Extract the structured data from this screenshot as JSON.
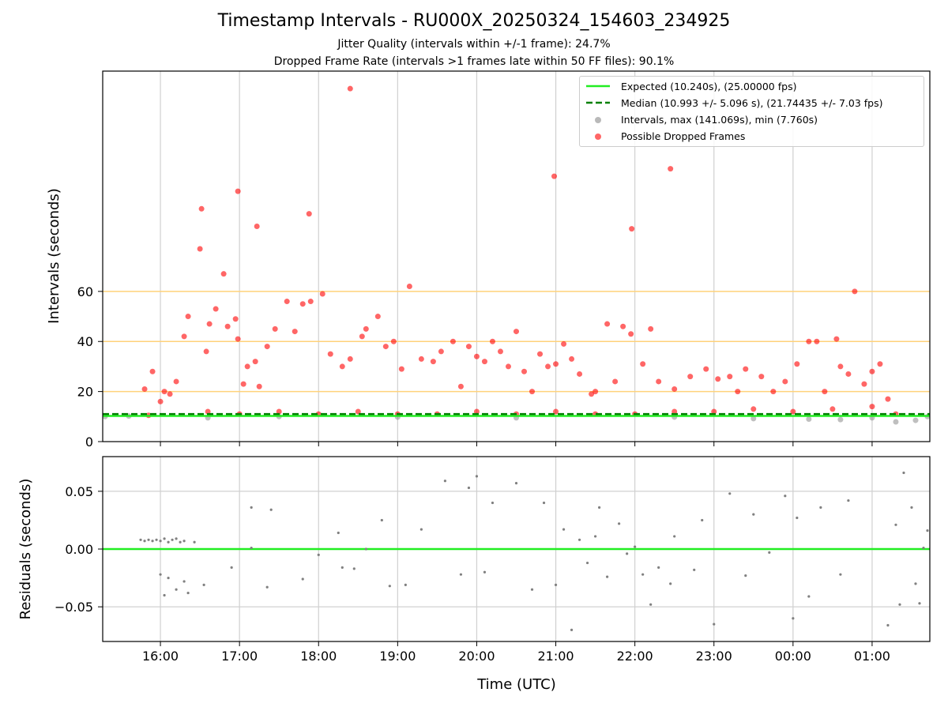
{
  "title": "Timestamp Intervals - RU000X_20250324_154603_234925",
  "subtitle_1": "Jitter Quality (intervals within +/-1 frame): 24.7%",
  "subtitle_2": "Dropped Frame Rate (intervals >1 frames late within 50 FF files): 90.1%",
  "legend": {
    "expected": "Expected (10.240s), (25.00000 fps)",
    "median": "Median (10.993 +/- 5.096 s), (21.74435 +/- 7.03 fps)",
    "intervals": "Intervals, max (141.069s), min (7.760s)",
    "dropped": "Possible Dropped Frames"
  },
  "colors": {
    "expected": "#22ee22",
    "median": "#008000",
    "intervals": "#808080",
    "dropped": "#ff0000",
    "threshold": "#ffd27a",
    "grid": "#d0d0d0"
  },
  "chart_data": [
    {
      "type": "scatter",
      "title": "Timestamp Intervals - RU000X_20250324_154603_234925",
      "xlabel": "",
      "ylabel": "Intervals (seconds)",
      "x_unit": "hours since 16:00 UTC",
      "xlim": [
        -0.73,
        9.73
      ],
      "ylim": [
        0,
        148
      ],
      "x_ticks": [
        "16:00",
        "17:00",
        "18:00",
        "19:00",
        "20:00",
        "21:00",
        "22:00",
        "23:00",
        "00:00",
        "01:00"
      ],
      "y_ticks": [
        0,
        20,
        40,
        60
      ],
      "threshold_lines": [
        20,
        40,
        60
      ],
      "expected_line": 10.24,
      "median_line": 10.993,
      "legend_position": "top-right",
      "grid": true,
      "series": [
        {
          "name": "Possible Dropped Frames",
          "points": [
            [
              -0.2,
              21
            ],
            [
              -0.1,
              28
            ],
            [
              0.0,
              16
            ],
            [
              0.05,
              20
            ],
            [
              0.12,
              19
            ],
            [
              0.2,
              24
            ],
            [
              0.3,
              42
            ],
            [
              0.35,
              50
            ],
            [
              0.5,
              77
            ],
            [
              0.58,
              36
            ],
            [
              0.62,
              47
            ],
            [
              0.7,
              53
            ],
            [
              0.8,
              67
            ],
            [
              0.85,
              46
            ],
            [
              0.95,
              49
            ],
            [
              0.98,
              41
            ],
            [
              1.05,
              23
            ],
            [
              1.1,
              30
            ],
            [
              1.2,
              32
            ],
            [
              1.25,
              22
            ],
            [
              1.35,
              38
            ],
            [
              1.45,
              45
            ],
            [
              1.6,
              56
            ],
            [
              1.7,
              44
            ],
            [
              1.8,
              55
            ],
            [
              1.9,
              56
            ],
            [
              2.05,
              59
            ],
            [
              2.15,
              35
            ],
            [
              2.3,
              30
            ],
            [
              2.4,
              33
            ],
            [
              2.55,
              42
            ],
            [
              2.6,
              45
            ],
            [
              2.75,
              50
            ],
            [
              2.85,
              38
            ],
            [
              2.95,
              40
            ],
            [
              3.05,
              29
            ],
            [
              3.15,
              62
            ],
            [
              3.3,
              33
            ],
            [
              3.45,
              32
            ],
            [
              3.55,
              36
            ],
            [
              3.7,
              40
            ],
            [
              3.8,
              22
            ],
            [
              3.9,
              38
            ],
            [
              4.0,
              34
            ],
            [
              4.1,
              32
            ],
            [
              4.2,
              40
            ],
            [
              4.3,
              36
            ],
            [
              4.4,
              30
            ],
            [
              4.5,
              44
            ],
            [
              4.6,
              28
            ],
            [
              4.7,
              20
            ],
            [
              4.8,
              35
            ],
            [
              4.9,
              30
            ],
            [
              5.0,
              31
            ],
            [
              5.1,
              39
            ],
            [
              5.2,
              33
            ],
            [
              5.3,
              27
            ],
            [
              5.45,
              19
            ],
            [
              5.5,
              20
            ],
            [
              5.65,
              47
            ],
            [
              5.75,
              24
            ],
            [
              5.85,
              46
            ],
            [
              5.95,
              43
            ],
            [
              6.1,
              31
            ],
            [
              6.2,
              45
            ],
            [
              6.3,
              24
            ],
            [
              6.5,
              21
            ],
            [
              6.7,
              26
            ],
            [
              6.9,
              29
            ],
            [
              7.05,
              25
            ],
            [
              7.2,
              26
            ],
            [
              7.3,
              20
            ],
            [
              7.4,
              29
            ],
            [
              7.6,
              26
            ],
            [
              7.75,
              20
            ],
            [
              7.9,
              24
            ],
            [
              8.05,
              31
            ],
            [
              8.2,
              40
            ],
            [
              8.3,
              40
            ],
            [
              8.4,
              20
            ],
            [
              8.55,
              41
            ],
            [
              8.6,
              30
            ],
            [
              8.7,
              27
            ],
            [
              8.9,
              23
            ],
            [
              9.0,
              28
            ],
            [
              9.1,
              31
            ],
            [
              9.2,
              17
            ],
            [
              9.3,
              11
            ],
            [
              -0.15,
              10.5
            ],
            [
              0.6,
              12
            ],
            [
              1.0,
              11
            ],
            [
              1.5,
              12
            ],
            [
              2.0,
              11
            ],
            [
              2.5,
              12
            ],
            [
              3.0,
              11
            ],
            [
              3.5,
              11
            ],
            [
              4.0,
              12
            ],
            [
              4.5,
              11
            ],
            [
              5.0,
              12
            ],
            [
              5.5,
              11
            ],
            [
              6.0,
              11
            ],
            [
              6.5,
              12
            ],
            [
              7.0,
              12
            ],
            [
              7.5,
              13
            ],
            [
              8.0,
              12
            ],
            [
              8.5,
              13
            ],
            [
              9.0,
              14
            ],
            [
              2.4,
              141
            ],
            [
              4.98,
              106
            ],
            [
              6.45,
              109
            ],
            [
              0.52,
              93
            ],
            [
              0.98,
              100
            ],
            [
              1.22,
              86
            ],
            [
              1.88,
              91
            ],
            [
              5.96,
              85
            ],
            [
              8.78,
              60
            ]
          ]
        },
        {
          "name": "Intervals, max (141.069s), min (7.760s)",
          "points": [
            [
              -0.7,
              10
            ],
            [
              -0.4,
              10.2
            ],
            [
              0.6,
              9.5
            ],
            [
              1.5,
              10
            ],
            [
              3.0,
              9.8
            ],
            [
              4.5,
              9.5
            ],
            [
              6.5,
              9.8
            ],
            [
              7.5,
              9.2
            ],
            [
              8.2,
              9.0
            ],
            [
              8.6,
              8.8
            ],
            [
              9.0,
              9.5
            ],
            [
              9.3,
              7.9
            ],
            [
              9.55,
              8.5
            ],
            [
              9.7,
              10
            ]
          ]
        }
      ]
    },
    {
      "type": "scatter",
      "xlabel": "Time (UTC)",
      "ylabel": "Residuals (seconds)",
      "x_unit": "hours since 16:00 UTC",
      "xlim": [
        -0.73,
        9.73
      ],
      "ylim": [
        -0.08,
        0.08
      ],
      "x_ticks": [
        "16:00",
        "17:00",
        "18:00",
        "19:00",
        "20:00",
        "21:00",
        "22:00",
        "23:00",
        "00:00",
        "01:00"
      ],
      "y_ticks": [
        "−0.05",
        "0.00",
        "0.05"
      ],
      "y_tick_values": [
        -0.05,
        0.0,
        0.05
      ],
      "zero_line": 0.0,
      "grid": true,
      "series": [
        {
          "name": "Residuals",
          "points": [
            [
              -0.25,
              0.008
            ],
            [
              -0.2,
              0.007
            ],
            [
              -0.15,
              0.008
            ],
            [
              -0.1,
              0.007
            ],
            [
              -0.05,
              0.008
            ],
            [
              0.0,
              0.007
            ],
            [
              0.05,
              0.009
            ],
            [
              0.1,
              0.006
            ],
            [
              0.15,
              0.008
            ],
            [
              0.2,
              0.009
            ],
            [
              0.25,
              0.006
            ],
            [
              0.3,
              0.007
            ],
            [
              0.43,
              0.006
            ],
            [
              0.0,
              -0.022
            ],
            [
              0.05,
              -0.04
            ],
            [
              0.1,
              -0.025
            ],
            [
              0.2,
              -0.035
            ],
            [
              0.3,
              -0.028
            ],
            [
              0.35,
              -0.038
            ],
            [
              0.55,
              -0.031
            ],
            [
              0.9,
              -0.016
            ],
            [
              1.15,
              0.036
            ],
            [
              1.15,
              0.001
            ],
            [
              1.35,
              -0.033
            ],
            [
              1.4,
              0.034
            ],
            [
              1.8,
              -0.026
            ],
            [
              2.0,
              -0.005
            ],
            [
              2.25,
              0.014
            ],
            [
              2.3,
              -0.016
            ],
            [
              2.45,
              -0.017
            ],
            [
              2.6,
              0.0
            ],
            [
              2.8,
              0.025
            ],
            [
              2.9,
              -0.032
            ],
            [
              3.1,
              -0.031
            ],
            [
              3.3,
              0.017
            ],
            [
              3.6,
              0.059
            ],
            [
              3.8,
              -0.022
            ],
            [
              3.9,
              0.053
            ],
            [
              4.0,
              0.063
            ],
            [
              4.1,
              -0.02
            ],
            [
              4.2,
              0.04
            ],
            [
              4.5,
              0.057
            ],
            [
              4.7,
              -0.035
            ],
            [
              4.85,
              0.04
            ],
            [
              5.0,
              -0.031
            ],
            [
              5.1,
              0.017
            ],
            [
              5.2,
              -0.07
            ],
            [
              5.3,
              0.008
            ],
            [
              5.4,
              -0.012
            ],
            [
              5.5,
              0.011
            ],
            [
              5.55,
              0.036
            ],
            [
              5.65,
              -0.024
            ],
            [
              5.8,
              0.022
            ],
            [
              5.9,
              -0.004
            ],
            [
              6.0,
              0.002
            ],
            [
              6.1,
              -0.022
            ],
            [
              6.2,
              -0.048
            ],
            [
              6.3,
              -0.016
            ],
            [
              6.45,
              -0.03
            ],
            [
              6.5,
              0.011
            ],
            [
              6.75,
              -0.018
            ],
            [
              6.85,
              0.025
            ],
            [
              7.0,
              -0.065
            ],
            [
              7.2,
              0.048
            ],
            [
              7.4,
              -0.023
            ],
            [
              7.5,
              0.03
            ],
            [
              7.7,
              -0.003
            ],
            [
              7.9,
              0.046
            ],
            [
              8.0,
              -0.06
            ],
            [
              8.05,
              0.027
            ],
            [
              8.2,
              -0.041
            ],
            [
              8.35,
              0.036
            ],
            [
              8.6,
              -0.022
            ],
            [
              8.7,
              0.042
            ],
            [
              9.2,
              -0.066
            ],
            [
              9.3,
              0.021
            ],
            [
              9.35,
              -0.048
            ],
            [
              9.4,
              0.066
            ],
            [
              9.5,
              0.036
            ],
            [
              9.55,
              -0.03
            ],
            [
              9.6,
              -0.047
            ],
            [
              9.65,
              0.001
            ],
            [
              9.7,
              0.016
            ]
          ]
        },
        {
          "name": "Expected",
          "type": "line",
          "values": [
            0.0
          ]
        }
      ]
    }
  ]
}
